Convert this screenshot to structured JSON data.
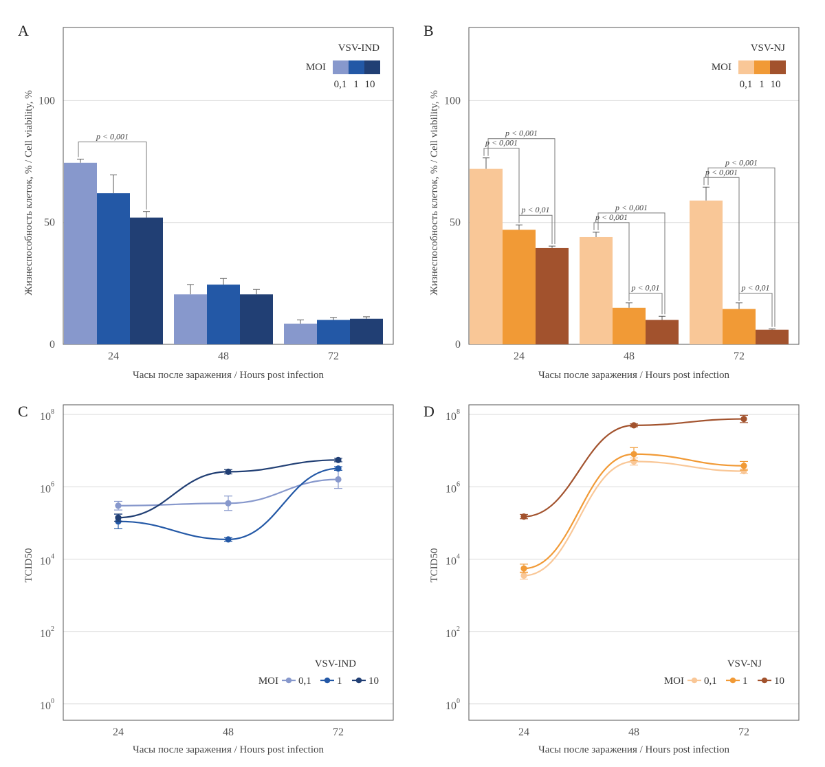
{
  "chart_data": [
    {
      "panel": "A",
      "type": "bar",
      "xlabel": "Часы после заражения / Hours post infection",
      "ylabel": "Жизнеспособность клеток, % / Cell viability, %",
      "ylim": [
        0,
        130
      ],
      "yticks": [
        "0",
        "50",
        "100"
      ],
      "grid": true,
      "categories": [
        "24",
        "48",
        "72"
      ],
      "legend": {
        "title": "VSV-IND",
        "moi_label": "MOI",
        "position": "top-right"
      },
      "series": [
        {
          "name": "0,1",
          "color": "#8798cc",
          "values": [
            74.5,
            20.5,
            8.5
          ],
          "errors": [
            1.5,
            4.0,
            1.5
          ]
        },
        {
          "name": "1",
          "color": "#2358a6",
          "values": [
            62,
            24.5,
            10
          ],
          "errors": [
            7.5,
            2.5,
            1.0
          ]
        },
        {
          "name": "10",
          "color": "#213f74",
          "values": [
            52,
            20.5,
            10.5
          ],
          "errors": [
            2.5,
            2.0,
            0.8
          ]
        }
      ],
      "annotations": [
        {
          "text": "p < 0,001",
          "group": 0,
          "from": 0,
          "to": 2
        }
      ]
    },
    {
      "panel": "B",
      "type": "bar",
      "xlabel": "Часы после заражения / Hours post infection",
      "ylabel": "Жизнеспособность клеток, % / Cell viability, %",
      "ylim": [
        0,
        130
      ],
      "yticks": [
        "0",
        "50",
        "100"
      ],
      "grid": true,
      "categories": [
        "24",
        "48",
        "72"
      ],
      "legend": {
        "title": "VSV-NJ",
        "moi_label": "MOI",
        "position": "top-right"
      },
      "series": [
        {
          "name": "0,1",
          "color": "#f9c797",
          "values": [
            72,
            44,
            59
          ],
          "errors": [
            4.5,
            2.0,
            5.5
          ]
        },
        {
          "name": "1",
          "color": "#f19a36",
          "values": [
            47,
            15,
            14.5
          ],
          "errors": [
            2.0,
            2.0,
            2.5
          ]
        },
        {
          "name": "10",
          "color": "#a2522d",
          "values": [
            39.5,
            10,
            6
          ],
          "errors": [
            0.8,
            1.5,
            0.3
          ]
        }
      ],
      "annotations": [
        {
          "text": "p < 0,001",
          "group": 0,
          "from": 0,
          "to": 2
        },
        {
          "text": "p < 0,001",
          "group": 0,
          "from": 0,
          "to": 1
        },
        {
          "text": "p < 0,01",
          "group": 0,
          "from": 1,
          "to": 2
        },
        {
          "text": "p < 0,001",
          "group": 1,
          "from": 0,
          "to": 2
        },
        {
          "text": "p < 0,001",
          "group": 1,
          "from": 0,
          "to": 1
        },
        {
          "text": "p < 0,01",
          "group": 1,
          "from": 1,
          "to": 2
        },
        {
          "text": "p < 0,001",
          "group": 2,
          "from": 0,
          "to": 2
        },
        {
          "text": "p < 0,001",
          "group": 2,
          "from": 0,
          "to": 1
        },
        {
          "text": "p < 0,01",
          "group": 2,
          "from": 1,
          "to": 2
        }
      ]
    },
    {
      "panel": "C",
      "type": "line",
      "xlabel": "Часы после заражения / Hours post infection",
      "ylabel": "TCID50",
      "log_scale": true,
      "ylim_log10": [
        0,
        8
      ],
      "yticks": [
        {
          "base": "10",
          "exp": "0"
        },
        {
          "base": "10",
          "exp": "2"
        },
        {
          "base": "10",
          "exp": "4"
        },
        {
          "base": "10",
          "exp": "6"
        },
        {
          "base": "10",
          "exp": "8"
        }
      ],
      "grid": true,
      "x": [
        24,
        48,
        72
      ],
      "xticks": [
        "24",
        "48",
        "72"
      ],
      "legend": {
        "title": "VSV-IND",
        "moi_label": "MOI",
        "position": "bottom-right"
      },
      "series": [
        {
          "name": "0,1",
          "color": "#8798cc",
          "values": [
            300000,
            350000,
            1600000
          ],
          "errors_log10": [
            0.12,
            0.2,
            0.25
          ]
        },
        {
          "name": "1",
          "color": "#2358a6",
          "values": [
            110000,
            35000,
            3200000
          ],
          "errors_log10": [
            0.2,
            0.05,
            0.05
          ]
        },
        {
          "name": "10",
          "color": "#213f74",
          "values": [
            140000,
            2600000,
            5500000
          ],
          "errors_log10": [
            0.1,
            0.06,
            0.05
          ]
        }
      ]
    },
    {
      "panel": "D",
      "type": "line",
      "xlabel": "Часы после заражения / Hours post infection",
      "ylabel": "TCID50",
      "log_scale": true,
      "ylim_log10": [
        0,
        8
      ],
      "yticks": [
        {
          "base": "10",
          "exp": "0"
        },
        {
          "base": "10",
          "exp": "2"
        },
        {
          "base": "10",
          "exp": "4"
        },
        {
          "base": "10",
          "exp": "6"
        },
        {
          "base": "10",
          "exp": "8"
        }
      ],
      "grid": true,
      "x": [
        24,
        48,
        72
      ],
      "xticks": [
        "24",
        "48",
        "72"
      ],
      "legend": {
        "title": "VSV-NJ",
        "moi_label": "MOI",
        "position": "bottom-right"
      },
      "series": [
        {
          "name": "0,1",
          "color": "#f9c797",
          "values": [
            3500,
            5000000,
            2700000
          ],
          "errors_log10": [
            0.1,
            0.1,
            0.06
          ]
        },
        {
          "name": "1",
          "color": "#f19a36",
          "values": [
            5500,
            8000000,
            3800000
          ],
          "errors_log10": [
            0.12,
            0.18,
            0.12
          ]
        },
        {
          "name": "10",
          "color": "#a2522d",
          "values": [
            150000,
            50000000,
            75000000
          ],
          "errors_log10": [
            0.06,
            0.04,
            0.1
          ]
        }
      ]
    }
  ]
}
